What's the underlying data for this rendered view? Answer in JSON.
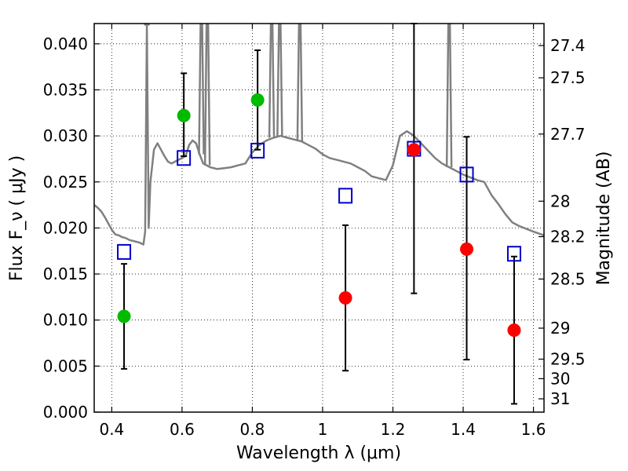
{
  "chart_data": {
    "type": "scatter",
    "xlabel": "Wavelength  λ (μm)",
    "ylabel": "Flux  F_ν  ( μJy )",
    "ylabel_right": "Magnitude (AB)",
    "xlim": [
      0.35,
      1.63
    ],
    "ylim": [
      0.0,
      0.0422
    ],
    "grid": true,
    "x_ticks": [
      0.4,
      0.6,
      0.8,
      1.0,
      1.2,
      1.4,
      1.6
    ],
    "x_tick_labels": [
      "0.4",
      "0.6",
      "0.8",
      "1",
      "1.2",
      "1.4",
      "1.6"
    ],
    "y_ticks": [
      0.0,
      0.005,
      0.01,
      0.015,
      0.02,
      0.025,
      0.03,
      0.035,
      0.04
    ],
    "y_tick_labels": [
      "0.000",
      "0.005",
      "0.010",
      "0.015",
      "0.020",
      "0.025",
      "0.030",
      "0.035",
      "0.040"
    ],
    "right_ticks": [
      27.4,
      27.5,
      27.7,
      28,
      28.2,
      28.5,
      29,
      29.5,
      30,
      31
    ],
    "right_tick_labels": [
      "27.4",
      "27.5",
      "27.7",
      "28",
      "28.2",
      "28.5",
      "29",
      "29.5",
      "30",
      "31"
    ],
    "sed_spectrum": {
      "color": "#808080",
      "x": [
        0.35,
        0.36,
        0.37,
        0.38,
        0.39,
        0.4,
        0.41,
        0.42,
        0.43,
        0.44,
        0.45,
        0.46,
        0.47,
        0.48,
        0.49,
        0.495,
        0.5,
        0.505,
        0.51,
        0.52,
        0.53,
        0.54,
        0.55,
        0.56,
        0.57,
        0.58,
        0.59,
        0.6,
        0.61,
        0.62,
        0.63,
        0.64,
        0.65,
        0.66,
        0.67,
        0.68,
        0.7,
        0.72,
        0.74,
        0.76,
        0.78,
        0.8,
        0.82,
        0.84,
        0.86,
        0.88,
        0.9,
        0.92,
        0.94,
        0.96,
        0.98,
        1.0,
        1.02,
        1.04,
        1.06,
        1.08,
        1.1,
        1.12,
        1.14,
        1.16,
        1.18,
        1.2,
        1.22,
        1.24,
        1.26,
        1.28,
        1.3,
        1.32,
        1.34,
        1.36,
        1.38,
        1.4,
        1.42,
        1.44,
        1.46,
        1.48,
        1.5,
        1.52,
        1.54,
        1.56,
        1.58,
        1.6,
        1.63
      ],
      "y": [
        0.0225,
        0.0222,
        0.0218,
        0.0212,
        0.0205,
        0.0198,
        0.0193,
        0.0192,
        0.019,
        0.0189,
        0.0187,
        0.0186,
        0.0185,
        0.0184,
        0.0182,
        0.0196,
        0.042,
        0.02,
        0.025,
        0.0285,
        0.0292,
        0.0285,
        0.0278,
        0.0272,
        0.027,
        0.0272,
        0.0274,
        0.0276,
        0.0278,
        0.029,
        0.0295,
        0.0292,
        0.028,
        0.027,
        0.0268,
        0.0266,
        0.0264,
        0.0265,
        0.0266,
        0.0268,
        0.027,
        0.0282,
        0.029,
        0.0295,
        0.0298,
        0.03,
        0.0298,
        0.0296,
        0.0294,
        0.029,
        0.0286,
        0.028,
        0.0276,
        0.0274,
        0.0272,
        0.027,
        0.0266,
        0.0262,
        0.0256,
        0.0254,
        0.0252,
        0.0268,
        0.03,
        0.0305,
        0.03,
        0.0292,
        0.0284,
        0.0276,
        0.027,
        0.0266,
        0.0262,
        0.0258,
        0.0255,
        0.0252,
        0.025,
        0.0236,
        0.0226,
        0.0215,
        0.0206,
        0.0202,
        0.0199,
        0.0196,
        0.0192
      ],
      "emission_peaks": [
        {
          "x": 0.5,
          "y": 0.0422
        },
        {
          "x": 0.655,
          "y": 0.0422
        },
        {
          "x": 0.672,
          "y": 0.0422
        },
        {
          "x": 0.855,
          "y": 0.0422
        },
        {
          "x": 0.878,
          "y": 0.0422
        },
        {
          "x": 0.935,
          "y": 0.0422
        },
        {
          "x": 1.36,
          "y": 0.0422
        }
      ]
    },
    "series": [
      {
        "marker": "square",
        "color": "#0000cc",
        "x": [
          0.435,
          0.605,
          0.815,
          1.065,
          1.26,
          1.41,
          1.545
        ],
        "y": [
          0.0174,
          0.0276,
          0.0284,
          0.0235,
          0.0286,
          0.0258,
          0.0172
        ]
      },
      {
        "marker": "circle",
        "color": "#00bb00",
        "x": [
          0.435,
          0.605,
          0.815
        ],
        "y": [
          0.0104,
          0.0322,
          0.0339
        ],
        "yerr_low": [
          0.0047,
          0.0278,
          0.0285
        ],
        "yerr_high": [
          0.0161,
          0.0368,
          0.0393
        ]
      },
      {
        "marker": "circle",
        "color": "#ff0000",
        "x": [
          1.065,
          1.26,
          1.41,
          1.545
        ],
        "y": [
          0.0124,
          0.0285,
          0.0177,
          0.0089
        ],
        "yerr_low": [
          0.0045,
          0.0129,
          0.0057,
          0.0009
        ],
        "yerr_high": [
          0.0203,
          0.0422,
          0.0299,
          0.0169
        ]
      }
    ]
  }
}
